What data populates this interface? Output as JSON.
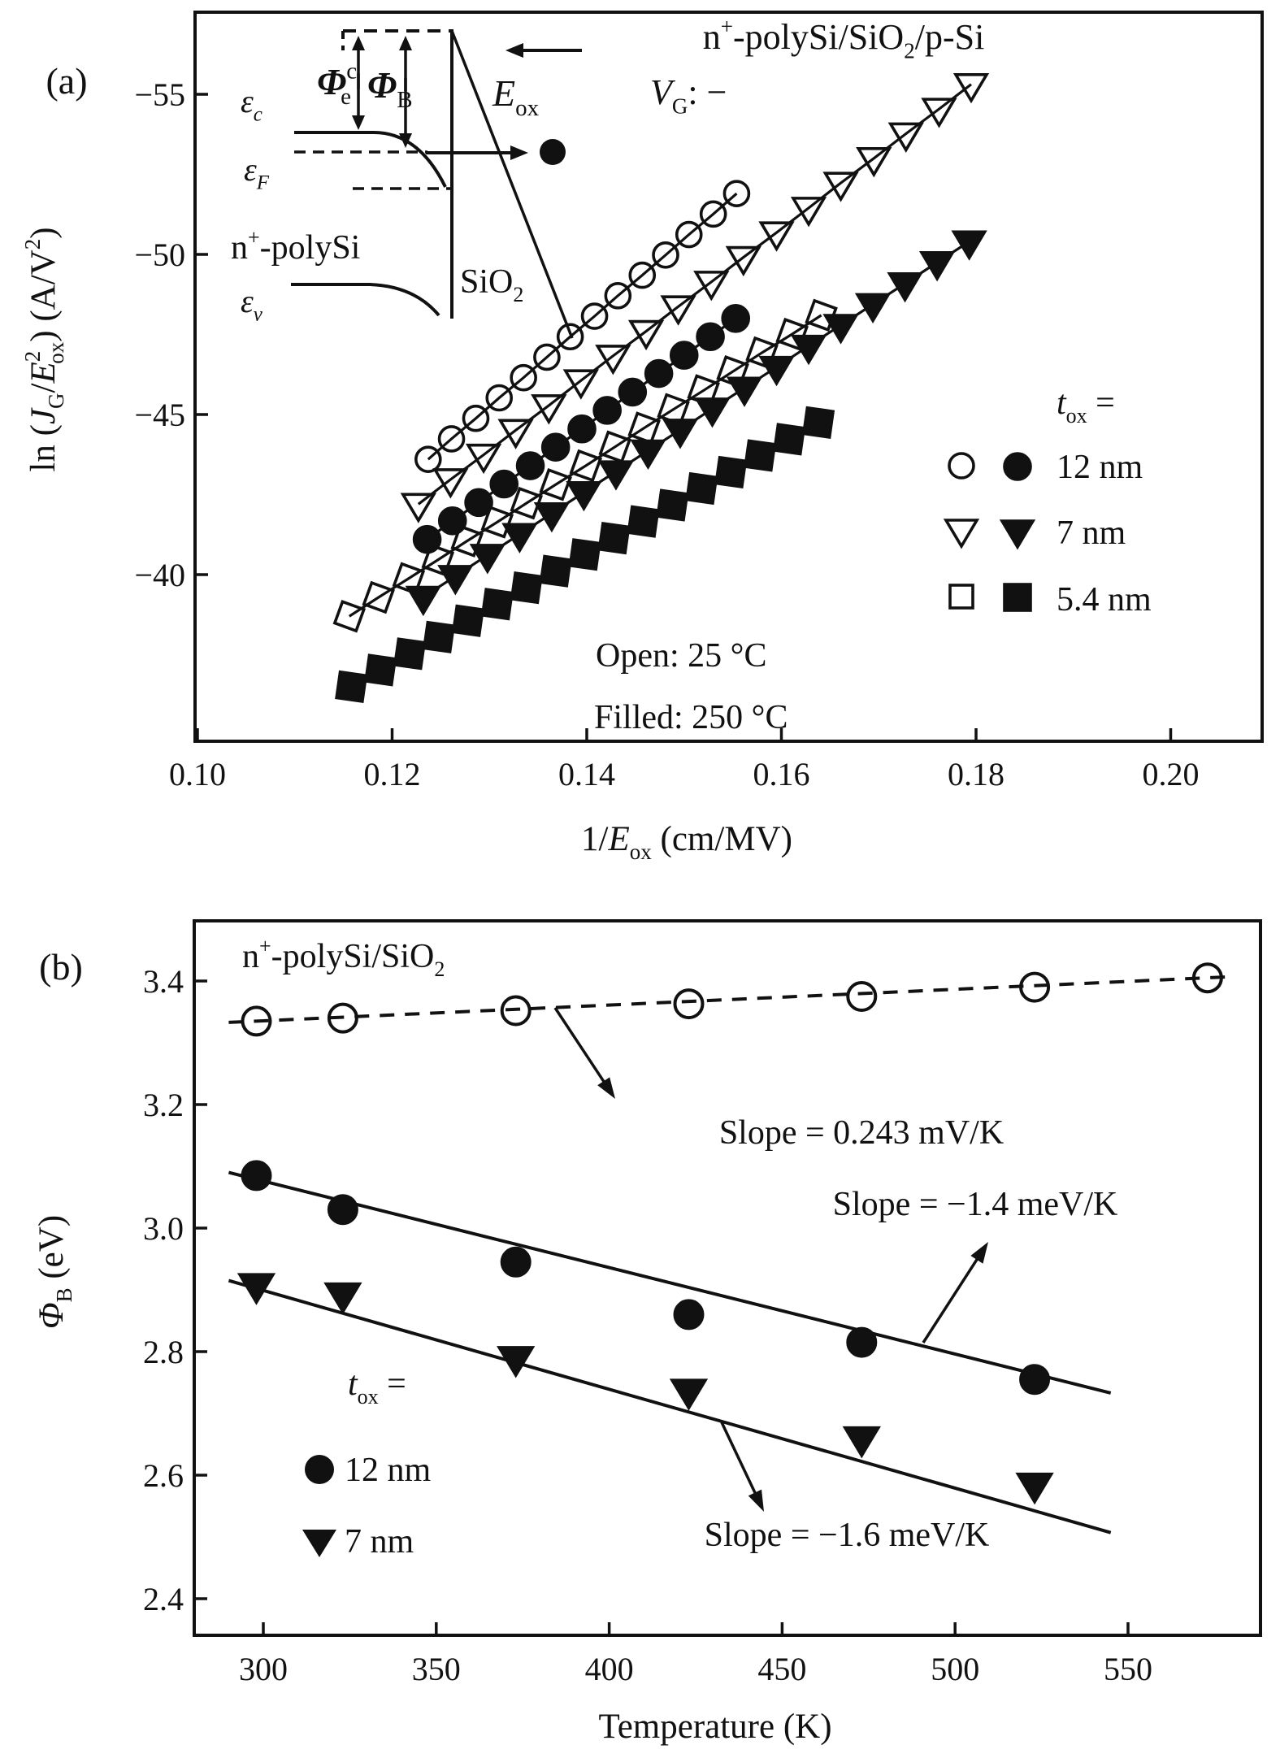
{
  "colors": {
    "ink": "#111111",
    "background": "#ffffff"
  },
  "chart_data": [
    {
      "panel": "a",
      "type": "scatter",
      "panel_label": "(a)",
      "title_tokens": [
        {
          "t": "n"
        },
        {
          "t": "+",
          "sup": 1
        },
        {
          "t": "-polySi/SiO"
        },
        {
          "t": "2",
          "sub": 1
        },
        {
          "t": "/p-Si"
        }
      ],
      "gate_bias_tokens": [
        {
          "t": "V",
          "i": 1
        },
        {
          "t": "G",
          "sub": 1
        },
        {
          "t": ": −"
        }
      ],
      "xlabel_tokens": [
        {
          "t": "1/"
        },
        {
          "t": "E",
          "i": 1
        },
        {
          "t": "ox",
          "sub": 1
        },
        {
          "t": " (cm/MV)"
        }
      ],
      "ylabel_tokens": [
        {
          "t": "ln ("
        },
        {
          "t": "J",
          "i": 1
        },
        {
          "t": "G",
          "sub": 1
        },
        {
          "t": "/"
        },
        {
          "t": "E",
          "i": 1
        },
        {
          "t": "2",
          "sup": 1
        },
        {
          "t": "ox",
          "sub": 1,
          "dx": -16
        },
        {
          "t": ") (A/V"
        },
        {
          "t": "2",
          "sup": 1
        },
        {
          "t": ")"
        }
      ],
      "x_ticks": [
        0.1,
        0.12,
        0.14,
        0.16,
        0.18,
        0.2
      ],
      "x_tick_labels": [
        "0.10",
        "0.12",
        "0.14",
        "0.16",
        "0.18",
        "0.20"
      ],
      "y_ticks": [
        -55,
        -50,
        -45,
        -40
      ],
      "xlim": [
        0.0997,
        0.2093
      ],
      "ylim": [
        -57.6,
        -34.8
      ],
      "temp_notes": [
        "Open: 25 °C",
        "Filled: 250 °C"
      ],
      "legend": {
        "heading_tokens": [
          {
            "t": "t",
            "i": 1
          },
          {
            "t": "ox",
            "sub": 1
          },
          {
            "t": " ="
          }
        ],
        "rows": [
          {
            "label": "12 nm",
            "marker": "circle"
          },
          {
            "label": "7 nm",
            "marker": "triangle"
          },
          {
            "label": "5.4 nm",
            "marker": "square"
          }
        ]
      },
      "inset_labels": {
        "eps_c": [
          {
            "t": "ε",
            "i": 1
          },
          {
            "t": "c",
            "sub": 1
          }
        ],
        "eps_f": [
          {
            "t": "ε",
            "i": 1
          },
          {
            "t": "F",
            "sub": 1
          }
        ],
        "eps_v": [
          {
            "t": "ε",
            "i": 1
          },
          {
            "t": "v",
            "sub": 1
          }
        ],
        "poly": [
          {
            "t": "n"
          },
          {
            "t": "+",
            "sup": 1
          },
          {
            "t": "-polySi"
          }
        ],
        "oxide": [
          {
            "t": "SiO"
          },
          {
            "t": "2",
            "sub": 1
          }
        ],
        "e_ox": [
          {
            "t": "E",
            "i": 1
          },
          {
            "t": "ox",
            "sub": 1
          }
        ],
        "phi_ec": [
          {
            "t": "Φ",
            "i": 1,
            "b": 1
          },
          {
            "t": "c",
            "sup": 1
          },
          {
            "t": "e",
            "sub": 1,
            "dx": -20
          }
        ],
        "phi_b": [
          {
            "t": "Φ",
            "i": 1,
            "b": 1
          },
          {
            "t": "B",
            "sub": 1
          }
        ]
      },
      "series": [
        {
          "name": "tox 12 nm, 25 C, open circles",
          "marker": "circle",
          "fill": "open",
          "x": [
            0.1237,
            0.1261,
            0.1286,
            0.131,
            0.1335,
            0.1359,
            0.1383,
            0.1408,
            0.1432,
            0.1457,
            0.1481,
            0.1505,
            0.153,
            0.1554
          ],
          "y": [
            -43.6,
            -44.24,
            -44.88,
            -45.52,
            -46.15,
            -46.79,
            -47.43,
            -48.07,
            -48.71,
            -49.35,
            -49.98,
            -50.62,
            -51.26,
            -51.9
          ]
        },
        {
          "name": "tox 12 nm, 250 C, filled circles",
          "marker": "circle",
          "fill": "filled",
          "x": [
            0.1236,
            0.1262,
            0.1289,
            0.1315,
            0.1342,
            0.1368,
            0.1395,
            0.1421,
            0.1447,
            0.1474,
            0.15,
            0.1527,
            0.1553
          ],
          "y": [
            -41.1,
            -41.68,
            -42.25,
            -42.83,
            -43.4,
            -43.98,
            -44.55,
            -45.13,
            -45.7,
            -46.28,
            -46.85,
            -47.43,
            -48.0
          ]
        },
        {
          "name": "tox 7 nm, 25 C, open triangles",
          "marker": "triangle",
          "fill": "open",
          "x": [
            0.1227,
            0.126,
            0.1294,
            0.1327,
            0.1361,
            0.1394,
            0.1427,
            0.1461,
            0.1494,
            0.1528,
            0.1561,
            0.1595,
            0.1628,
            0.1661,
            0.1695,
            0.1728,
            0.1762,
            0.1795
          ],
          "y": [
            -42.2,
            -42.97,
            -43.74,
            -44.51,
            -45.28,
            -46.06,
            -46.83,
            -47.6,
            -48.37,
            -49.14,
            -49.91,
            -50.68,
            -51.45,
            -52.23,
            -53.0,
            -53.77,
            -54.54,
            -55.31
          ]
        },
        {
          "name": "tox 7 nm, 250 C, filled triangles",
          "marker": "triangle",
          "fill": "filled",
          "x": [
            0.1232,
            0.1265,
            0.1298,
            0.1331,
            0.1364,
            0.1397,
            0.143,
            0.1463,
            0.1496,
            0.1529,
            0.1562,
            0.1595,
            0.1628,
            0.1661,
            0.1694,
            0.1727,
            0.176,
            0.1793
          ],
          "y": [
            -39.3,
            -39.95,
            -40.61,
            -41.26,
            -41.91,
            -42.57,
            -43.22,
            -43.87,
            -44.52,
            -45.18,
            -45.83,
            -46.48,
            -47.14,
            -47.79,
            -48.44,
            -49.09,
            -49.75,
            -50.4
          ]
        },
        {
          "name": "tox 5.4 nm, 25 C, open squares",
          "marker": "square",
          "fill": "open",
          "x": [
            0.1156,
            0.1186,
            0.1217,
            0.1247,
            0.1277,
            0.1308,
            0.1338,
            0.1368,
            0.1399,
            0.1429,
            0.1459,
            0.1489,
            0.152,
            0.155,
            0.158,
            0.1611,
            0.1641
          ],
          "y": [
            -38.7,
            -39.29,
            -39.88,
            -40.46,
            -41.05,
            -41.64,
            -42.23,
            -42.81,
            -43.4,
            -43.99,
            -44.58,
            -45.16,
            -45.75,
            -46.34,
            -46.93,
            -47.51,
            -48.1
          ]
        },
        {
          "name": "tox 5.4 nm, 250 C, filled squares",
          "marker": "square",
          "fill": "filled",
          "x": [
            0.1158,
            0.1188,
            0.1218,
            0.1248,
            0.1278,
            0.1308,
            0.1338,
            0.1368,
            0.1398,
            0.1428,
            0.1458,
            0.1488,
            0.1518,
            0.1548,
            0.1578,
            0.1608,
            0.1638
          ],
          "y": [
            -36.5,
            -37.02,
            -37.53,
            -38.05,
            -38.56,
            -39.08,
            -39.59,
            -40.11,
            -40.63,
            -41.14,
            -41.66,
            -42.17,
            -42.69,
            -43.2,
            -43.72,
            -44.23,
            -44.75
          ]
        }
      ]
    },
    {
      "panel": "b",
      "type": "scatter",
      "panel_label": "(b)",
      "title_tokens": [
        {
          "t": "n"
        },
        {
          "t": "+",
          "sup": 1
        },
        {
          "t": "-polySi/SiO"
        },
        {
          "t": "2",
          "sub": 1
        }
      ],
      "xlabel": "Temperature (K)",
      "ylabel_tokens": [
        {
          "t": "Φ",
          "i": 1
        },
        {
          "t": "B",
          "sub": 1
        },
        {
          "t": " (eV)"
        }
      ],
      "x_ticks": [
        300,
        350,
        400,
        450,
        500,
        550
      ],
      "y_ticks": [
        3.4,
        3.2,
        3.0,
        2.8,
        2.6,
        2.4
      ],
      "xlim": [
        280,
        590
      ],
      "ylim": [
        2.29,
        3.5
      ],
      "legend": {
        "heading_tokens": [
          {
            "t": "t",
            "i": 1
          },
          {
            "t": "ox",
            "sub": 1
          },
          {
            "t": " ="
          }
        ],
        "rows": [
          {
            "label": "12 nm",
            "marker": "circle"
          },
          {
            "label": "7 nm",
            "marker": "triangle"
          }
        ]
      },
      "annotations": [
        {
          "text": "Slope = 0.243 mV/K"
        },
        {
          "text": "Slope = −1.4 meV/K"
        },
        {
          "text": "Slope = −1.6 meV/K"
        }
      ],
      "series": [
        {
          "name": "open circles, slope 0.243 mV/K",
          "marker": "circle",
          "fill": "open",
          "line": "dashed",
          "x": [
            298,
            323,
            373,
            423,
            473,
            523,
            573
          ],
          "y": [
            3.335,
            3.34,
            3.352,
            3.363,
            3.375,
            3.39,
            3.405
          ],
          "fit": {
            "x": [
              290,
              580
            ],
            "y": [
              3.333,
              3.407
            ]
          }
        },
        {
          "name": "tox 12 nm filled circles, slope -1.4 meV/K",
          "marker": "circle",
          "fill": "filled",
          "line": "solid",
          "x": [
            298,
            323,
            373,
            423,
            473,
            523
          ],
          "y": [
            3.085,
            3.03,
            2.945,
            2.86,
            2.815,
            2.755
          ],
          "fit": {
            "x": [
              290,
              545
            ],
            "y": [
              3.09,
              2.733
            ]
          }
        },
        {
          "name": "tox 7 nm filled triangles, slope -1.6 meV/K",
          "marker": "triangle",
          "fill": "filled",
          "line": "solid",
          "x": [
            298,
            323,
            373,
            423,
            473,
            523
          ],
          "y": [
            2.908,
            2.893,
            2.79,
            2.737,
            2.66,
            2.585
          ],
          "fit": {
            "x": [
              290,
              545
            ],
            "y": [
              2.915,
              2.507
            ]
          }
        }
      ]
    }
  ]
}
